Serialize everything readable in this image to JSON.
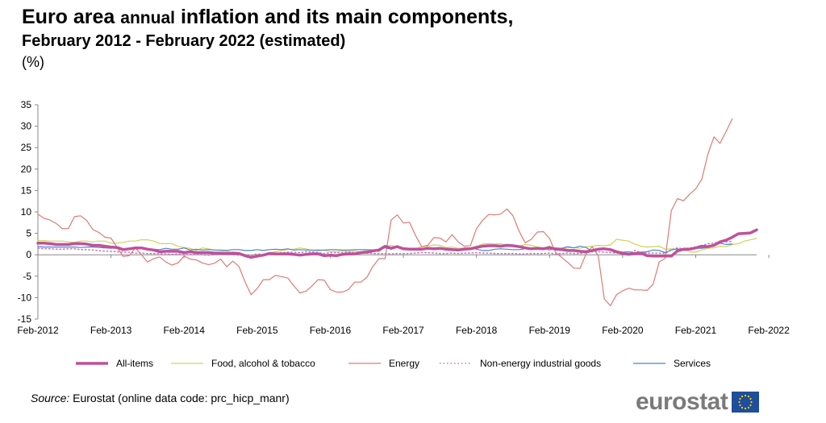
{
  "header": {
    "title_part1": "Euro area",
    "title_small": "annual",
    "title_part2": "inflation and its main components,",
    "subtitle": "February 2012 - February 2022 (estimated)",
    "unit": "(%)"
  },
  "source": {
    "label": "Source:",
    "text": "Eurostat (online data code: prc_hicp_manr)"
  },
  "logo": {
    "text": "eurostat",
    "flag": "eu-flag-icon"
  },
  "colors": {
    "all_items": "#c0509a",
    "food": "#c9d65a",
    "energy": "#e07a76",
    "non_energy": "#c07ac0",
    "services": "#4f82c8",
    "axis": "#888888",
    "grid": "#d9d9d9"
  },
  "chart_data": {
    "type": "line",
    "title": "Euro area annual inflation and its main components, February 2012 - February 2022 (estimated)",
    "ylabel": "(%)",
    "xlabel": "",
    "ylim": [
      -15,
      35
    ],
    "yticks": [
      -15,
      -10,
      -5,
      0,
      5,
      10,
      15,
      20,
      25,
      30,
      35
    ],
    "x_tick_labels": [
      "Feb-2012",
      "Feb-2013",
      "Feb-2014",
      "Feb-2015",
      "Feb-2016",
      "Feb-2017",
      "Feb-2018",
      "Feb-2019",
      "Feb-2020",
      "Feb-2021",
      "Feb-2022"
    ],
    "grid": false,
    "legend_position": "bottom",
    "x_start": "2012-02",
    "x_frequency": "monthly",
    "series": [
      {
        "name": "All-items",
        "color_key": "all_items",
        "width": 3.5,
        "dash": "",
        "values": [
          2.7,
          2.7,
          2.6,
          2.4,
          2.4,
          2.4,
          2.6,
          2.6,
          2.5,
          2.2,
          2.2,
          2.0,
          1.8,
          1.7,
          1.2,
          1.4,
          1.6,
          1.6,
          1.3,
          1.1,
          0.7,
          0.8,
          0.8,
          0.8,
          0.5,
          0.7,
          0.5,
          0.5,
          0.5,
          0.4,
          0.4,
          0.3,
          0.4,
          0.3,
          -0.2,
          -0.6,
          -0.3,
          -0.1,
          0.3,
          0.2,
          0.2,
          0.2,
          0.1,
          -0.1,
          0.1,
          0.2,
          0.2,
          -0.2,
          -0.1,
          -0.2,
          0.1,
          0.2,
          0.2,
          0.5,
          0.6,
          0.9,
          1.1,
          2.0,
          1.5,
          1.9,
          1.4,
          1.3,
          1.3,
          1.3,
          1.5,
          1.4,
          1.5,
          1.3,
          1.2,
          1.1,
          1.3,
          1.4,
          1.7,
          2.0,
          2.1,
          2.1,
          2.0,
          2.2,
          2.1,
          1.9,
          1.6,
          1.4,
          1.5,
          1.4,
          1.7,
          1.3,
          1.2,
          1.0,
          1.0,
          0.8,
          0.7,
          1.0,
          1.3,
          1.4,
          1.2,
          0.7,
          0.3,
          0.1,
          0.3,
          0.4,
          -0.2,
          -0.3,
          -0.3,
          -0.3,
          -0.3,
          0.9,
          1.3,
          1.3,
          1.6,
          2.0,
          1.9,
          2.2,
          3.0,
          3.4,
          4.1,
          4.9,
          5.0,
          5.1,
          5.8
        ]
      },
      {
        "name": "Food, alcohol & tobacco",
        "color_key": "food",
        "width": 1.2,
        "dash": "",
        "values": [
          3.3,
          3.3,
          3.2,
          3.2,
          3.2,
          3.0,
          2.9,
          3.2,
          3.2,
          3.0,
          3.2,
          3.2,
          2.7,
          2.7,
          2.9,
          3.2,
          3.2,
          3.5,
          3.5,
          3.2,
          2.6,
          2.6,
          2.6,
          2.0,
          1.7,
          1.5,
          1.0,
          1.6,
          1.4,
          1.1,
          1.0,
          0.8,
          0.4,
          0.5,
          0.0,
          -0.1,
          0.0,
          0.0,
          0.5,
          0.7,
          1.0,
          1.2,
          1.3,
          1.6,
          1.4,
          1.0,
          1.2,
          1.0,
          0.8,
          0.8,
          0.9,
          0.8,
          0.9,
          0.6,
          1.1,
          1.2,
          0.7,
          1.9,
          2.2,
          1.8,
          1.5,
          1.3,
          1.4,
          1.9,
          2.0,
          2.3,
          2.2,
          1.7,
          1.8,
          1.5,
          1.5,
          1.6,
          2.0,
          2.5,
          2.6,
          2.5,
          2.6,
          2.1,
          2.2,
          2.0,
          2.4,
          2.2,
          1.8,
          1.6,
          2.0,
          1.4,
          1.4,
          1.6,
          1.7,
          1.5,
          1.9,
          2.0,
          2.2,
          2.1,
          2.3,
          3.6,
          3.4,
          3.2,
          2.5,
          2.0,
          1.8,
          1.9,
          2.0,
          1.3,
          1.4,
          1.2,
          1.1,
          0.7,
          0.6,
          1.1,
          1.5,
          1.6,
          2.0,
          1.9,
          2.4,
          2.6,
          3.2,
          3.5,
          3.8
        ]
      },
      {
        "name": "Energy",
        "color_key": "energy",
        "width": 1.2,
        "dash": "",
        "values": [
          9.5,
          8.5,
          8.1,
          7.3,
          6.1,
          6.1,
          8.9,
          9.1,
          8.0,
          5.9,
          5.2,
          4.1,
          3.9,
          1.7,
          -0.4,
          -0.2,
          1.6,
          0.0,
          -1.7,
          -0.9,
          -0.5,
          -1.7,
          -2.4,
          -1.9,
          -0.3,
          -1.0,
          -1.2,
          -1.9,
          -2.3,
          -2.0,
          -1.0,
          -2.8,
          -1.5,
          -2.7,
          -6.3,
          -9.3,
          -7.9,
          -5.8,
          -5.8,
          -4.8,
          -5.1,
          -5.4,
          -7.2,
          -8.9,
          -8.5,
          -7.3,
          -5.8,
          -5.9,
          -8.1,
          -8.7,
          -8.7,
          -8.1,
          -6.4,
          -6.4,
          -5.3,
          -2.7,
          -0.9,
          -0.9,
          8.1,
          9.3,
          7.4,
          7.6,
          4.5,
          1.9,
          2.2,
          4.0,
          3.9,
          3.0,
          4.7,
          3.0,
          2.0,
          2.1,
          6.1,
          8.0,
          9.4,
          9.3,
          9.5,
          10.7,
          9.1,
          5.5,
          2.8,
          3.6,
          5.3,
          5.4,
          3.8,
          0.5,
          -0.6,
          -1.8,
          -3.1,
          -3.2,
          0.2,
          1.9,
          -0.3,
          -10.3,
          -11.9,
          -9.3,
          -8.4,
          -7.8,
          -8.2,
          -8.2,
          -8.3,
          -6.9,
          -1.7,
          -0.8,
          10.3,
          13.1,
          12.6,
          14.1,
          15.4,
          17.6,
          23.5,
          27.5,
          26.0,
          28.8,
          31.7
        ]
      },
      {
        "name": "Non-energy industrial goods",
        "color_key": "non_energy",
        "width": 1.5,
        "dash": "1.5,3",
        "values": [
          1.5,
          1.4,
          1.4,
          1.3,
          1.3,
          1.4,
          1.4,
          1.2,
          1.2,
          1.1,
          1.0,
          0.8,
          0.8,
          0.7,
          0.6,
          0.6,
          0.4,
          0.4,
          0.3,
          0.3,
          0.2,
          0.2,
          0.1,
          0.2,
          0.0,
          0.1,
          0.1,
          0.0,
          -0.1,
          0.0,
          0.2,
          0.1,
          0.0,
          -0.1,
          0.0,
          -0.1,
          0.2,
          0.1,
          0.4,
          0.3,
          0.5,
          0.6,
          0.6,
          0.5,
          0.7,
          0.7,
          0.5,
          0.3,
          0.5,
          0.5,
          0.5,
          0.6,
          0.5,
          0.3,
          0.4,
          0.3,
          0.3,
          0.3,
          0.2,
          0.3,
          0.3,
          0.3,
          0.4,
          0.5,
          0.5,
          0.4,
          0.3,
          0.3,
          0.4,
          0.3,
          0.4,
          0.4,
          0.5,
          0.4,
          0.4,
          0.3,
          0.3,
          0.3,
          0.3,
          0.2,
          0.2,
          0.3,
          0.3,
          0.3,
          0.4,
          0.2,
          0.3,
          0.4,
          0.3,
          0.3,
          0.5,
          0.7,
          0.7,
          0.6,
          0.5,
          0.4,
          0.3,
          0.3,
          1.0,
          0.5,
          0.4,
          0.4,
          0.4,
          0.3,
          1.2,
          1.6,
          1.4,
          1.6,
          1.8,
          2.1,
          2.6,
          2.7,
          3.1,
          3.0,
          3.1
        ]
      },
      {
        "name": "Services",
        "color_key": "services",
        "width": 1.2,
        "dash": "",
        "values": [
          1.9,
          1.8,
          1.8,
          1.8,
          1.8,
          1.8,
          1.8,
          1.7,
          1.8,
          1.8,
          1.7,
          1.6,
          1.5,
          1.7,
          1.1,
          1.4,
          1.5,
          1.6,
          1.4,
          1.3,
          1.2,
          1.5,
          1.3,
          1.3,
          1.6,
          1.1,
          1.3,
          1.1,
          1.2,
          1.1,
          1.1,
          1.0,
          1.2,
          1.2,
          1.0,
          1.0,
          1.2,
          1.0,
          1.2,
          1.3,
          1.2,
          1.4,
          1.1,
          1.2,
          1.1,
          1.1,
          1.0,
          1.1,
          1.2,
          1.2,
          1.1,
          1.1,
          1.2,
          1.2,
          1.2,
          1.1,
          1.3,
          1.6,
          1.3,
          1.8,
          1.6,
          1.5,
          1.5,
          1.4,
          1.4,
          1.3,
          1.5,
          1.2,
          1.4,
          1.2,
          1.6,
          1.6,
          1.3,
          1.0,
          1.0,
          1.3,
          1.4,
          1.3,
          1.2,
          1.2,
          1.4,
          1.2,
          1.5,
          1.6,
          1.1,
          1.6,
          1.5,
          1.9,
          1.6,
          2.0,
          1.7,
          0.8,
          1.2,
          1.3,
          1.2,
          0.9,
          0.6,
          0.7,
          0.4,
          0.6,
          0.7,
          1.1,
          1.0,
          0.5,
          1.1,
          1.4,
          1.0,
          1.2,
          1.5,
          1.5,
          1.7,
          2.1,
          2.7,
          2.4,
          2.5
        ]
      }
    ]
  }
}
